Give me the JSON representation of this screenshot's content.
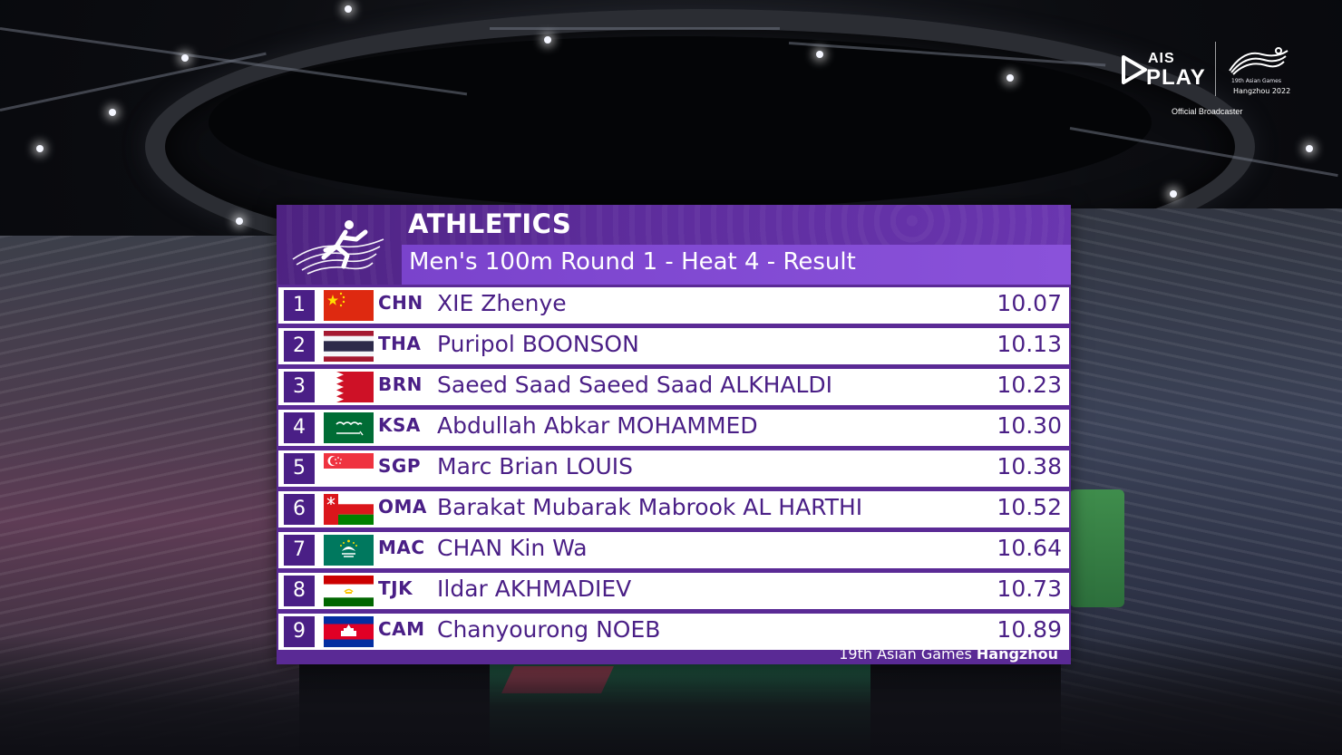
{
  "broadcaster": {
    "ais_label": "AIS",
    "play_label": "PLAY",
    "games_line1": "19th Asian Games",
    "games_line2": "Hangzhou 2022",
    "official_label": "Official Broadcaster"
  },
  "board": {
    "sport": "ATHLETICS",
    "event": "Men's 100m Round 1 - Heat 4 - Result",
    "footer_prefix": "19th Asian Games",
    "footer_city": "Hangzhou",
    "colors": {
      "board_purple": "#5a2a95",
      "accent_purple": "#8a52da",
      "text_purple": "#4a1f86"
    },
    "results": [
      {
        "rank": "1",
        "flag": "china-flag",
        "code": "CHN",
        "name": "XIE Zhenye",
        "time": "10.07"
      },
      {
        "rank": "2",
        "flag": "thailand-flag",
        "code": "THA",
        "name": "Puripol BOONSON",
        "time": "10.13"
      },
      {
        "rank": "3",
        "flag": "bahrain-flag",
        "code": "BRN",
        "name": "Saeed Saad Saeed Saad ALKHALDI",
        "time": "10.23"
      },
      {
        "rank": "4",
        "flag": "saudi-arabia-flag",
        "code": "KSA",
        "name": "Abdullah Abkar MOHAMMED",
        "time": "10.30"
      },
      {
        "rank": "5",
        "flag": "singapore-flag",
        "code": "SGP",
        "name": "Marc Brian LOUIS",
        "time": "10.38"
      },
      {
        "rank": "6",
        "flag": "oman-flag",
        "code": "OMA",
        "name": "Barakat Mubarak Mabrook AL HARTHI",
        "time": "10.52"
      },
      {
        "rank": "7",
        "flag": "macau-flag",
        "code": "MAC",
        "name": "CHAN Kin Wa",
        "time": "10.64"
      },
      {
        "rank": "8",
        "flag": "tajikistan-flag",
        "code": "TJK",
        "name": "Ildar AKHMADIEV",
        "time": "10.73"
      },
      {
        "rank": "9",
        "flag": "cambodia-flag",
        "code": "CAM",
        "name": "Chanyourong NOEB",
        "time": "10.89"
      }
    ]
  }
}
